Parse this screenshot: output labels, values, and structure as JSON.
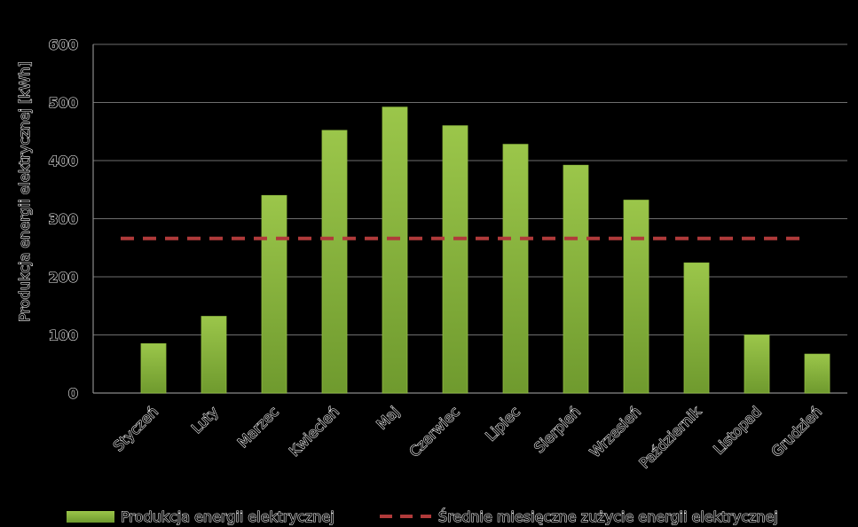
{
  "chart_data": {
    "type": "bar",
    "title": "",
    "xlabel": "",
    "ylabel": "Produkcja energii elektrycznej [kWh]",
    "ylim": [
      0,
      600
    ],
    "yticks": [
      0,
      100,
      200,
      300,
      400,
      500,
      600
    ],
    "grid": true,
    "legend_position": "bottom",
    "categories": [
      "Styczeń",
      "Luty",
      "Marzec",
      "Kwiecień",
      "Maj",
      "Czerwiec",
      "Lipiec",
      "Sierpień",
      "Wrzesień",
      "Październik",
      "Listopad",
      "Grudzień"
    ],
    "series": [
      {
        "name": "Produkcja energii elektrycznej",
        "type": "bar",
        "color": "#8ab43a",
        "values": [
          85,
          132,
          340,
          452,
          492,
          460,
          428,
          392,
          332,
          224,
          100,
          67
        ]
      },
      {
        "name": "Średnie miesięczne zużycie energii elektrycznej",
        "type": "line",
        "style": "dashed",
        "color": "#b03a3a",
        "values": [
          266,
          266,
          266,
          266,
          266,
          266,
          266,
          266,
          266,
          266,
          266,
          266
        ]
      }
    ]
  }
}
